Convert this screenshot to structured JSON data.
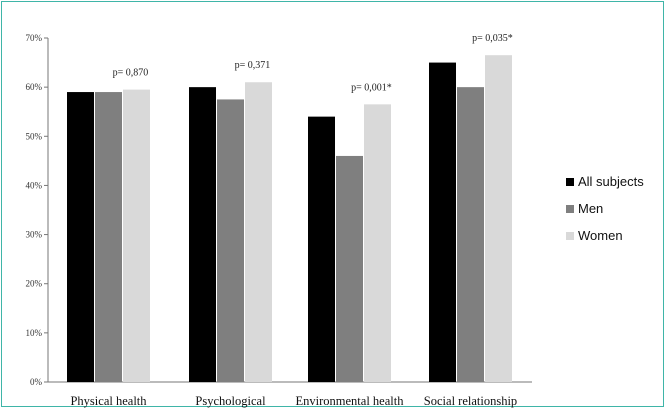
{
  "chart_data": {
    "type": "bar",
    "categories": [
      "Physical health",
      "Psychological",
      "Environmental health",
      "Social relationship"
    ],
    "series": [
      {
        "name": "All subjects",
        "color": "#000000",
        "values": [
          59,
          60,
          54,
          65
        ]
      },
      {
        "name": "Men",
        "color": "#7f7f7f",
        "values": [
          59,
          57.5,
          46,
          60
        ]
      },
      {
        "name": "Women",
        "color": "#d9d9d9",
        "values": [
          59.5,
          61,
          56.5,
          66.5
        ]
      }
    ],
    "annotations": [
      "p= 0,870",
      "p= 0,371",
      "p= 0,001*",
      "p= 0,035*"
    ],
    "y_ticks": [
      "0%",
      "10%",
      "20%",
      "30%",
      "40%",
      "50%",
      "60%",
      "70%"
    ],
    "ylim": [
      0,
      70
    ],
    "grid": false,
    "legend_position": "right",
    "title": "",
    "xlabel": "",
    "ylabel": ""
  }
}
